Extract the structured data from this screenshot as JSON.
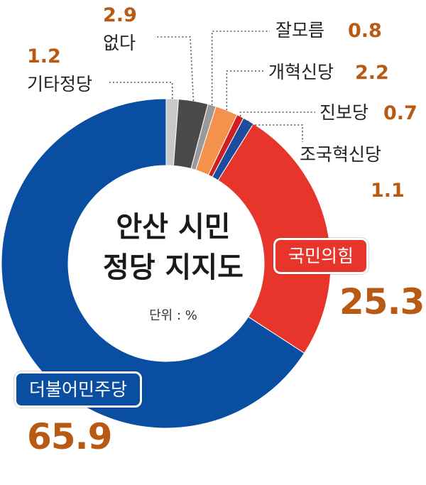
{
  "chart_data": {
    "type": "donut",
    "title_line1": "안산 시민",
    "title_line2": "정당 지지도",
    "unit": "단위 : %",
    "slices": [
      {
        "name": "기타정당",
        "value": 1.2,
        "color": "#c8c8c8"
      },
      {
        "name": "없다",
        "value": 2.9,
        "color": "#4a4a4a"
      },
      {
        "name": "잘모름",
        "value": 0.8,
        "color": "#9a9a9a"
      },
      {
        "name": "개혁신당",
        "value": 2.2,
        "color": "#f4914a"
      },
      {
        "name": "진보당",
        "value": 0.7,
        "color": "#cf1f1f"
      },
      {
        "name": "조국혁신당",
        "value": 1.1,
        "color": "#1c4c9e"
      },
      {
        "name": "국민의힘",
        "value": 25.3,
        "color": "#e8352c"
      },
      {
        "name": "더불어민주당",
        "value": 65.9,
        "color": "#0a4ea2"
      }
    ]
  }
}
